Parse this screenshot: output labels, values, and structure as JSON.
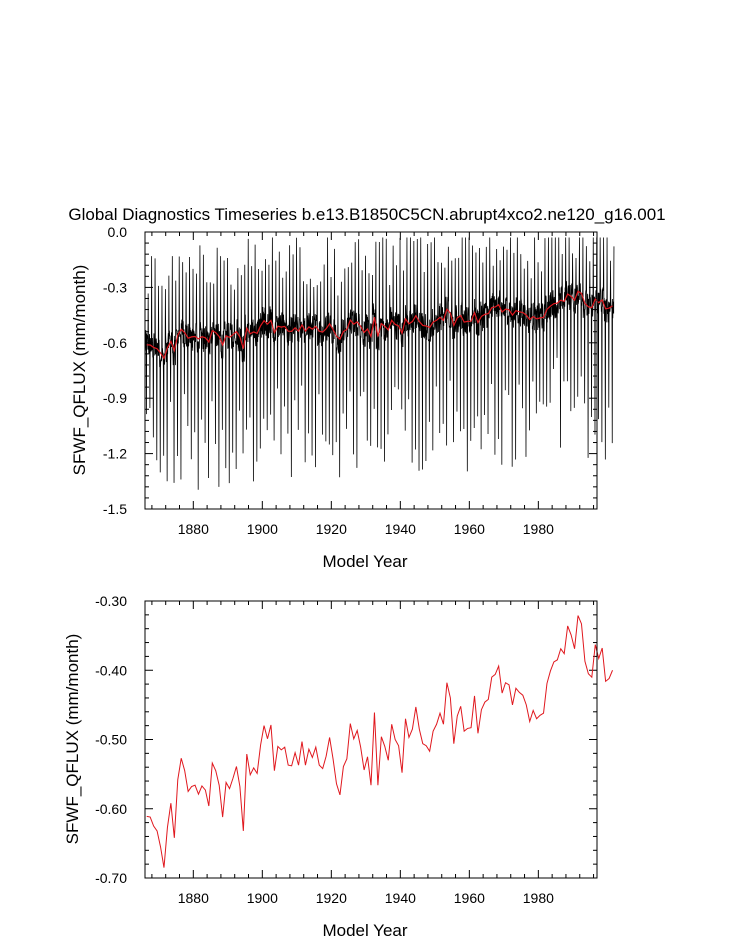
{
  "chart_data": [
    {
      "type": "line",
      "title": "Global Diagnostics Timeseries b.e13.B1850C5CN.abrupt4xco2.ne120_g16.001",
      "xlabel": "Model Year",
      "ylabel": "SFWF_QFLUX (mm/month)",
      "xlim": [
        1866,
        1997
      ],
      "ylim": [
        -1.5,
        0.0
      ],
      "x_ticks": [
        "1880",
        "1900",
        "1920",
        "1940",
        "1960",
        "1980"
      ],
      "y_ticks": [
        "0.0",
        "-0.3",
        "-0.6",
        "-0.9",
        "-1.2",
        "-1.5"
      ],
      "series": [
        {
          "name": "monthly",
          "color": "#000000",
          "note": "monthly values oscillating roughly between -1.3 and -0.05 around the annual mean"
        },
        {
          "name": "annual mean",
          "color": "#e0181e",
          "note": "same annual series as the lower panel"
        }
      ]
    },
    {
      "type": "line",
      "title": "",
      "xlabel": "Model Year",
      "ylabel": "SFWF_QFLUX (mm/month)",
      "xlim": [
        1866,
        1997
      ],
      "ylim": [
        -0.7,
        -0.3
      ],
      "x_ticks": [
        "1880",
        "1900",
        "1920",
        "1940",
        "1960",
        "1980"
      ],
      "y_ticks": [
        "-0.30",
        "-0.40",
        "-0.50",
        "-0.60",
        "-0.70"
      ],
      "series": [
        {
          "name": "annual mean",
          "color": "#e0181e",
          "x_start": 1866,
          "values": [
            -0.611,
            -0.612,
            -0.625,
            -0.632,
            -0.655,
            -0.685,
            -0.627,
            -0.592,
            -0.642,
            -0.558,
            -0.527,
            -0.545,
            -0.575,
            -0.568,
            -0.566,
            -0.579,
            -0.567,
            -0.573,
            -0.596,
            -0.534,
            -0.545,
            -0.566,
            -0.612,
            -0.562,
            -0.571,
            -0.556,
            -0.539,
            -0.568,
            -0.632,
            -0.521,
            -0.551,
            -0.541,
            -0.549,
            -0.508,
            -0.48,
            -0.499,
            -0.479,
            -0.545,
            -0.51,
            -0.515,
            -0.511,
            -0.537,
            -0.538,
            -0.519,
            -0.537,
            -0.503,
            -0.537,
            -0.514,
            -0.526,
            -0.511,
            -0.537,
            -0.542,
            -0.524,
            -0.497,
            -0.528,
            -0.564,
            -0.58,
            -0.539,
            -0.528,
            -0.477,
            -0.499,
            -0.487,
            -0.511,
            -0.544,
            -0.525,
            -0.566,
            -0.461,
            -0.566,
            -0.496,
            -0.51,
            -0.53,
            -0.478,
            -0.5,
            -0.509,
            -0.548,
            -0.47,
            -0.497,
            -0.485,
            -0.453,
            -0.485,
            -0.506,
            -0.509,
            -0.517,
            -0.488,
            -0.478,
            -0.462,
            -0.478,
            -0.418,
            -0.44,
            -0.506,
            -0.466,
            -0.452,
            -0.488,
            -0.484,
            -0.483,
            -0.437,
            -0.491,
            -0.457,
            -0.446,
            -0.442,
            -0.41,
            -0.406,
            -0.394,
            -0.433,
            -0.418,
            -0.421,
            -0.45,
            -0.426,
            -0.432,
            -0.436,
            -0.45,
            -0.474,
            -0.458,
            -0.47,
            -0.465,
            -0.462,
            -0.419,
            -0.401,
            -0.388,
            -0.385,
            -0.369,
            -0.376,
            -0.336,
            -0.349,
            -0.369,
            -0.321,
            -0.333,
            -0.387,
            -0.405,
            -0.41,
            -0.363,
            -0.383,
            -0.368,
            -0.416,
            -0.412,
            -0.4
          ]
        }
      ]
    }
  ]
}
